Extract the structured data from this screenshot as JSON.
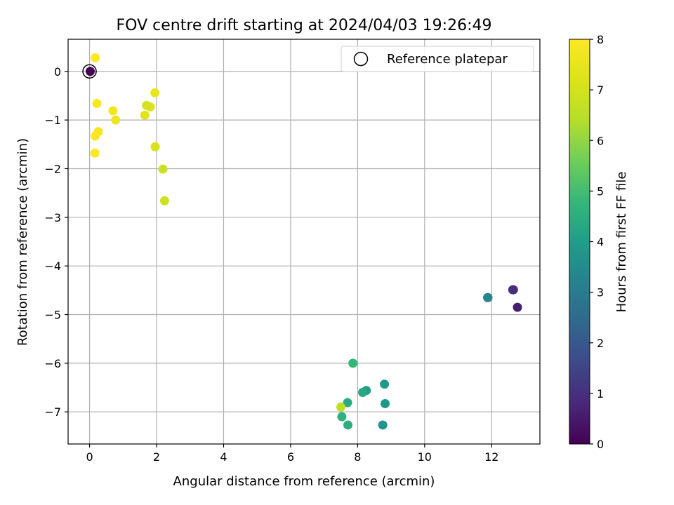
{
  "chart_data": {
    "type": "scatter",
    "title": "FOV centre drift starting at 2024/04/03 19:26:49",
    "xlabel": "Angular distance from reference (arcmin)",
    "ylabel": "Rotation from reference (arcmin)",
    "xlim": [
      -0.64,
      13.44
    ],
    "ylim": [
      -7.66,
      0.66
    ],
    "xticks": [
      0,
      2,
      4,
      6,
      8,
      10,
      12
    ],
    "yticks": [
      0,
      -1,
      -2,
      -3,
      -4,
      -5,
      -6,
      -7
    ],
    "xtick_labels": [
      "0",
      "2",
      "4",
      "6",
      "8",
      "10",
      "12"
    ],
    "ytick_labels": [
      "0",
      "−1",
      "−2",
      "−3",
      "−4",
      "−5",
      "−6",
      "−7"
    ],
    "grid": true,
    "colormap": "viridis",
    "legend": {
      "position": "top-right",
      "entries": [
        "Reference platepar"
      ]
    },
    "reference_point": {
      "x": 0,
      "y": 0,
      "hours": 0.0
    },
    "colorbar": {
      "label": "Hours from first FF file",
      "range": [
        0,
        8
      ],
      "ticks": [
        0,
        1,
        2,
        3,
        4,
        5,
        6,
        7,
        8
      ],
      "tick_labels": [
        "0",
        "1",
        "2",
        "3",
        "4",
        "5",
        "6",
        "7",
        "8"
      ]
    },
    "points": [
      {
        "x": 12.77,
        "y": -4.85,
        "hours": 0.6
      },
      {
        "x": 12.65,
        "y": -4.49,
        "hours": 0.9
      },
      {
        "x": 12.63,
        "y": -4.49,
        "hours": 1.0
      },
      {
        "x": 11.88,
        "y": -4.65,
        "hours": 3.1
      },
      {
        "x": 11.89,
        "y": -4.65,
        "hours": 3.3
      },
      {
        "x": 8.75,
        "y": -7.27,
        "hours": 3.7
      },
      {
        "x": 8.82,
        "y": -6.83,
        "hours": 3.8
      },
      {
        "x": 8.8,
        "y": -6.43,
        "hours": 3.9
      },
      {
        "x": 8.26,
        "y": -6.56,
        "hours": 4.1
      },
      {
        "x": 8.15,
        "y": -6.6,
        "hours": 4.3
      },
      {
        "x": 7.7,
        "y": -6.81,
        "hours": 4.4
      },
      {
        "x": 7.71,
        "y": -7.27,
        "hours": 4.5
      },
      {
        "x": 7.53,
        "y": -7.1,
        "hours": 4.6
      },
      {
        "x": 7.86,
        "y": -6.0,
        "hours": 4.8
      },
      {
        "x": 7.5,
        "y": -6.9,
        "hours": 6.6
      },
      {
        "x": 2.24,
        "y": -2.66,
        "hours": 6.9
      },
      {
        "x": 2.19,
        "y": -2.01,
        "hours": 6.8
      },
      {
        "x": 1.96,
        "y": -1.55,
        "hours": 7.1
      },
      {
        "x": 1.65,
        "y": -0.9,
        "hours": 7.3
      },
      {
        "x": 1.81,
        "y": -0.73,
        "hours": 7.2
      },
      {
        "x": 1.7,
        "y": -0.7,
        "hours": 7.0
      },
      {
        "x": 1.95,
        "y": -0.44,
        "hours": 7.5
      },
      {
        "x": 0.78,
        "y": -1.0,
        "hours": 7.6
      },
      {
        "x": 0.7,
        "y": -0.81,
        "hours": 7.7
      },
      {
        "x": 0.26,
        "y": -1.24,
        "hours": 7.8
      },
      {
        "x": 0.17,
        "y": -1.33,
        "hours": 7.9
      },
      {
        "x": 0.16,
        "y": -1.68,
        "hours": 7.95
      },
      {
        "x": 0.22,
        "y": -0.66,
        "hours": 7.9
      },
      {
        "x": 0.17,
        "y": 0.28,
        "hours": 8.0
      },
      {
        "x": 0.02,
        "y": 0.0,
        "hours": 0.0
      }
    ]
  }
}
